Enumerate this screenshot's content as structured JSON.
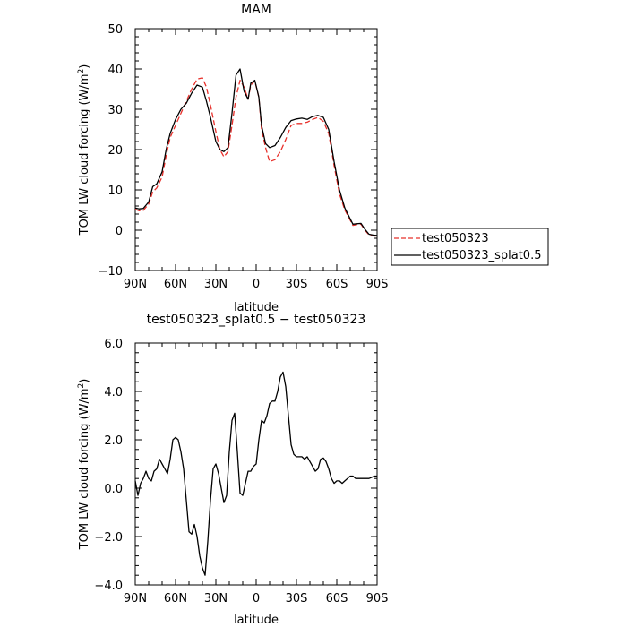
{
  "chart_data": [
    {
      "type": "line",
      "title": "MAM",
      "xlabel": "latitude",
      "ylabel_main": "TOM LW cloud forcing (W/m",
      "ylabel_sup": "2",
      "ylabel_close": ")",
      "xlim": [
        90,
        -90
      ],
      "ylim": [
        -10,
        50
      ],
      "xticks": [
        90,
        60,
        30,
        0,
        -30,
        -60,
        -90
      ],
      "xtick_labels": [
        "90N",
        "60N",
        "30N",
        "0",
        "30S",
        "60S",
        "90S"
      ],
      "yticks": [
        -10,
        0,
        10,
        20,
        30,
        40,
        50
      ],
      "ytick_labels": [
        "−10",
        "0",
        "10",
        "20",
        "30",
        "40",
        "50"
      ],
      "grid": false,
      "legend_position": "right",
      "series": [
        {
          "name": "test050323",
          "color": "#e8302b",
          "dash": "dashed",
          "x": [
            90,
            87,
            84,
            80,
            77,
            74,
            70,
            67,
            64,
            60,
            56,
            52,
            48,
            44,
            40,
            37,
            34,
            30,
            27,
            24,
            21,
            18,
            15,
            12,
            9,
            6,
            4,
            1,
            -2,
            -4,
            -7,
            -10,
            -14,
            -18,
            -22,
            -26,
            -30,
            -34,
            -38,
            -42,
            -46,
            -50,
            -54,
            -58,
            -62,
            -66,
            -70,
            -72,
            -75,
            -78,
            -81,
            -84,
            -87,
            -90
          ],
          "y": [
            5.2,
            4.8,
            4.9,
            6.5,
            9.5,
            10.5,
            13.2,
            18.5,
            23,
            26,
            29,
            32,
            35,
            37.5,
            37.8,
            35.5,
            31,
            24.5,
            20,
            18.2,
            19.5,
            26,
            33,
            37.2,
            35.5,
            32.5,
            36,
            37,
            33,
            25,
            20.5,
            17,
            17.5,
            19.5,
            22.5,
            26,
            26.5,
            26.5,
            26.8,
            27.5,
            28,
            27,
            24,
            16,
            9,
            5,
            2.5,
            1.2,
            1.4,
            1.5,
            0,
            -1.2,
            -1.4,
            -1.5
          ]
        },
        {
          "name": "test050323_splat0.5",
          "color": "#000000",
          "dash": "solid",
          "x": [
            90,
            87,
            84,
            80,
            77,
            74,
            70,
            67,
            64,
            60,
            56,
            52,
            48,
            44,
            40,
            37,
            34,
            30,
            27,
            24,
            21,
            18,
            15,
            12,
            9,
            6,
            4,
            1,
            -2,
            -4,
            -7,
            -10,
            -14,
            -18,
            -22,
            -26,
            -30,
            -34,
            -38,
            -42,
            -46,
            -50,
            -54,
            -58,
            -62,
            -66,
            -70,
            -72,
            -75,
            -78,
            -81,
            -84,
            -87,
            -90
          ],
          "y": [
            5.5,
            5.3,
            5.4,
            7,
            10.8,
            11.5,
            14.5,
            20,
            24,
            27.5,
            30,
            31.5,
            34,
            36,
            35.5,
            32,
            28,
            22,
            20,
            19.5,
            20.5,
            29,
            38.5,
            40,
            34.5,
            32.5,
            36.5,
            37.2,
            33,
            26,
            21.5,
            20.5,
            21,
            23,
            25.5,
            27.2,
            27.6,
            27.8,
            27.5,
            28.2,
            28.5,
            28,
            25,
            17,
            10,
            5.5,
            2.8,
            1.5,
            1.6,
            1.7,
            0.2,
            -1,
            -1.2,
            -1.3
          ]
        }
      ]
    },
    {
      "type": "line",
      "title": "test050323_splat0.5 − test050323",
      "xlabel": "latitude",
      "ylabel_main": "TOM LW cloud forcing (W/m",
      "ylabel_sup": "2",
      "ylabel_close": ")",
      "xlim": [
        90,
        -90
      ],
      "ylim": [
        -4,
        6
      ],
      "xticks": [
        90,
        60,
        30,
        0,
        -30,
        -60,
        -90
      ],
      "xtick_labels": [
        "90N",
        "60N",
        "30N",
        "0",
        "30S",
        "60S",
        "90S"
      ],
      "yticks": [
        -4,
        -2,
        0,
        2,
        4,
        6
      ],
      "ytick_labels": [
        "−4.0",
        "−2.0",
        "0.0",
        "2.0",
        "4.0",
        "6.0"
      ],
      "grid": false,
      "series": [
        {
          "color": "#000000",
          "dash": "solid",
          "x": [
            90,
            88,
            86,
            84,
            82,
            80,
            78,
            76,
            74,
            72,
            70,
            68,
            66,
            64,
            62,
            60,
            58,
            56,
            54,
            52,
            50,
            48,
            46,
            44,
            42,
            40,
            38,
            36,
            34,
            32,
            30,
            28,
            26,
            24,
            22,
            20,
            18,
            16,
            14,
            12,
            10,
            8,
            6,
            4,
            2,
            0,
            -2,
            -4,
            -6,
            -8,
            -10,
            -12,
            -14,
            -16,
            -18,
            -20,
            -22,
            -24,
            -26,
            -28,
            -30,
            -32,
            -34,
            -36,
            -38,
            -40,
            -42,
            -44,
            -46,
            -48,
            -50,
            -52,
            -54,
            -56,
            -58,
            -60,
            -62,
            -64,
            -66,
            -68,
            -70,
            -72,
            -74,
            -76,
            -78,
            -80,
            -82,
            -84,
            -86,
            -88,
            -90
          ],
          "y": [
            0.3,
            -0.3,
            0.2,
            0.4,
            0.7,
            0.4,
            0.3,
            0.7,
            0.8,
            1.2,
            1.0,
            0.8,
            0.6,
            1.2,
            2.0,
            2.1,
            2.0,
            1.5,
            0.8,
            -0.5,
            -1.8,
            -1.9,
            -1.5,
            -2.0,
            -2.8,
            -3.3,
            -3.6,
            -2.2,
            -0.5,
            0.8,
            1.0,
            0.6,
            0.0,
            -0.6,
            -0.3,
            1.5,
            2.8,
            3.1,
            1.5,
            -0.2,
            -0.3,
            0.2,
            0.7,
            0.7,
            0.9,
            1.0,
            2.0,
            2.8,
            2.7,
            3.0,
            3.5,
            3.6,
            3.6,
            4.0,
            4.6,
            4.8,
            4.2,
            3.0,
            1.8,
            1.4,
            1.3,
            1.3,
            1.3,
            1.2,
            1.3,
            1.1,
            0.9,
            0.7,
            0.8,
            1.2,
            1.25,
            1.1,
            0.8,
            0.4,
            0.2,
            0.3,
            0.3,
            0.2,
            0.3,
            0.4,
            0.5,
            0.5,
            0.4,
            0.4,
            0.4,
            0.4,
            0.4,
            0.4,
            0.45,
            0.5,
            0.5
          ]
        }
      ]
    }
  ]
}
